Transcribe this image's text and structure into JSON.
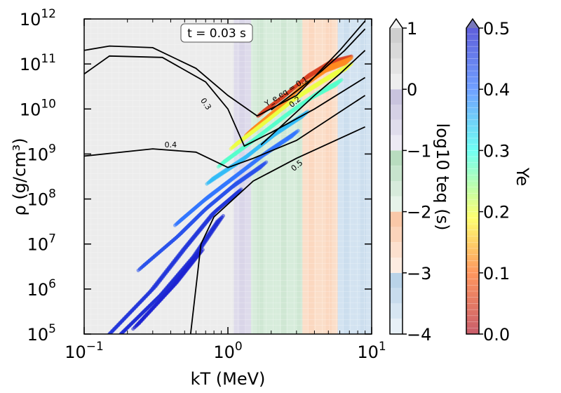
{
  "chart_data": {
    "type": "heatmap",
    "time_label": "t = 0.03 s",
    "xlabel": "kT (MeV)",
    "ylabel": "ρ (g/cm³)",
    "x_scale": "log",
    "y_scale": "log",
    "xlim": [
      0.1,
      10
    ],
    "ylim": [
      100000.0,
      1000000000000.0
    ],
    "x_ticks": [
      {
        "value": 0.1,
        "base": "10",
        "exp": "−1"
      },
      {
        "value": 1,
        "base": "10",
        "exp": "0"
      },
      {
        "value": 10,
        "base": "10",
        "exp": "1"
      }
    ],
    "y_ticks": [
      {
        "value": 100000.0,
        "base": "10",
        "exp": "5"
      },
      {
        "value": 1000000.0,
        "base": "10",
        "exp": "6"
      },
      {
        "value": 10000000.0,
        "base": "10",
        "exp": "7"
      },
      {
        "value": 100000000.0,
        "base": "10",
        "exp": "8"
      },
      {
        "value": 1000000000.0,
        "base": "10",
        "exp": "9"
      },
      {
        "value": 10000000000.0,
        "base": "10",
        "exp": "10"
      },
      {
        "value": 100000000000.0,
        "base": "10",
        "exp": "11"
      },
      {
        "value": 1000000000000.0,
        "base": "10",
        "exp": "12"
      }
    ],
    "background": {
      "name": "log10 t_eq",
      "colorbar_label": "log10 teq (s)",
      "range": [
        -4,
        1
      ],
      "ticks": [
        "1",
        "0",
        "−1",
        "−2",
        "−3",
        "−4"
      ],
      "tick_values": [
        1,
        0,
        -1,
        -2,
        -3,
        -4
      ],
      "bands_vs_kT": [
        {
          "kT": [
            0.1,
            1.1
          ],
          "log_teq": 0.5
        },
        {
          "kT": [
            1.1,
            1.45
          ],
          "log_teq": -0.3
        },
        {
          "kT": [
            1.45,
            2.15
          ],
          "log_teq": -1.2
        },
        {
          "kT": [
            2.15,
            3.3
          ],
          "log_teq": -1.9
        },
        {
          "kT": [
            3.3,
            5.8
          ],
          "log_teq": -2.8
        },
        {
          "kT": [
            5.8,
            10
          ],
          "log_teq": -3.6
        }
      ]
    },
    "contours_Ye_eq": [
      {
        "label": "Y_e,eq = 0.1",
        "level": 0.1,
        "points": [
          [
            2.0,
            9500000000.0
          ],
          [
            3.0,
            25000000000.0
          ],
          [
            4.5,
            70000000000.0
          ],
          [
            6.5,
            200000000000.0
          ],
          [
            9,
            600000000000.0
          ]
        ]
      },
      {
        "label": "0.2",
        "level": 0.2,
        "points": [
          [
            1.7,
            1600000000.0
          ],
          [
            2.5,
            5000000000.0
          ],
          [
            4,
            20000000000.0
          ],
          [
            6,
            60000000000.0
          ],
          [
            9,
            200000000000.0
          ]
        ]
      },
      {
        "label": "0.3",
        "level": 0.3,
        "points": [
          [
            0.1,
            60000000000.0
          ],
          [
            0.15,
            150000000000.0
          ],
          [
            0.35,
            140000000000.0
          ],
          [
            0.7,
            40000000000.0
          ],
          [
            1.0,
            10000000000.0
          ],
          [
            1.3,
            1500000000.0
          ],
          [
            2,
            3000000000.0
          ],
          [
            4,
            10000000000.0
          ],
          [
            9,
            50000000000.0
          ]
        ]
      },
      {
        "label": "0.4",
        "level": 0.4,
        "points": [
          [
            0.1,
            900000000.0
          ],
          [
            0.3,
            1300000000.0
          ],
          [
            0.6,
            1100000000.0
          ],
          [
            1.0,
            500000000.0
          ],
          [
            1.5,
            800000000.0
          ],
          [
            3,
            2000000000.0
          ],
          [
            9,
            20000000000.0
          ]
        ]
      },
      {
        "label": "0.5",
        "level": 0.5,
        "points": [
          [
            0.55,
            100000.0
          ],
          [
            0.65,
            10000000.0
          ],
          [
            0.8,
            40000000.0
          ],
          [
            1.5,
            250000000.0
          ],
          [
            3,
            800000000.0
          ],
          [
            9,
            4000000000.0
          ]
        ]
      }
    ],
    "extra_contours": [
      {
        "points": [
          [
            0.1,
            200000000000.0
          ],
          [
            0.15,
            250000000000.0
          ],
          [
            0.3,
            230000000000.0
          ],
          [
            0.6,
            80000000000.0
          ],
          [
            1.0,
            20000000000.0
          ],
          [
            1.6,
            7000000000.0
          ],
          [
            3,
            20000000000.0
          ],
          [
            6,
            200000000000.0
          ],
          [
            9,
            900000000000.0
          ]
        ]
      }
    ],
    "scatter": {
      "name": "Y_e",
      "colorbar_label": "Ye",
      "range": [
        0.0,
        0.5
      ],
      "ticks": [
        "0.5",
        "0.4",
        "0.3",
        "0.2",
        "0.1",
        "0.0"
      ],
      "tick_values": [
        0.5,
        0.4,
        0.3,
        0.2,
        0.1,
        0.0
      ],
      "tracks": [
        {
          "Ye": 0.05,
          "points": [
            [
              1.7,
              8000000000.0
            ],
            [
              2.5,
              20000000000.0
            ],
            [
              3.5,
              50000000000.0
            ],
            [
              5,
              100000000000.0
            ],
            [
              7,
              130000000000.0
            ]
          ]
        },
        {
          "Ye": 0.12,
          "points": [
            [
              1.4,
              3000000000.0
            ],
            [
              2.2,
              10000000000.0
            ],
            [
              3.2,
              30000000000.0
            ],
            [
              5,
              80000000000.0
            ],
            [
              7,
              120000000000.0
            ]
          ]
        },
        {
          "Ye": 0.2,
          "points": [
            [
              1.1,
              1500000000.0
            ],
            [
              1.8,
              5000000000.0
            ],
            [
              3,
              18000000000.0
            ],
            [
              5,
              50000000000.0
            ],
            [
              7,
              90000000000.0
            ]
          ]
        },
        {
          "Ye": 0.28,
          "points": [
            [
              0.9,
              600000000.0
            ],
            [
              1.5,
              2000000000.0
            ],
            [
              2.5,
              7000000000.0
            ],
            [
              4,
              20000000000.0
            ],
            [
              6,
              40000000000.0
            ]
          ]
        },
        {
          "Ye": 0.35,
          "points": [
            [
              0.75,
              250000000.0
            ],
            [
              1.3,
              800000000.0
            ],
            [
              2.2,
              3000000000.0
            ],
            [
              3.5,
              8000000000.0
            ]
          ]
        },
        {
          "Ye": 0.4,
          "points": [
            [
              0.45,
              30000000.0
            ],
            [
              0.7,
              100000000.0
            ],
            [
              1.1,
              300000000.0
            ],
            [
              1.8,
              1000000000.0
            ],
            [
              3,
              3000000000.0
            ]
          ]
        },
        {
          "Ye": 0.44,
          "points": [
            [
              0.25,
              3000000.0
            ],
            [
              0.45,
              15000000.0
            ],
            [
              0.7,
              60000000.0
            ],
            [
              1.1,
              200000000.0
            ],
            [
              1.8,
              600000000.0
            ]
          ]
        },
        {
          "Ye": 0.47,
          "points": [
            [
              0.15,
              100000.0
            ],
            [
              0.3,
              1000000.0
            ],
            [
              0.5,
              8000000.0
            ],
            [
              0.8,
              50000000.0
            ],
            [
              1.2,
              150000000.0
            ]
          ]
        },
        {
          "Ye": 0.48,
          "points": [
            [
              0.18,
              100000.0
            ],
            [
              0.35,
              800000.0
            ],
            [
              0.6,
              6000000.0
            ],
            [
              0.9,
              40000000.0
            ]
          ]
        },
        {
          "Ye": 0.49,
          "points": [
            [
              0.23,
              150000.0
            ],
            [
              0.42,
              1200000.0
            ],
            [
              0.65,
              7000000.0
            ]
          ]
        }
      ]
    }
  }
}
